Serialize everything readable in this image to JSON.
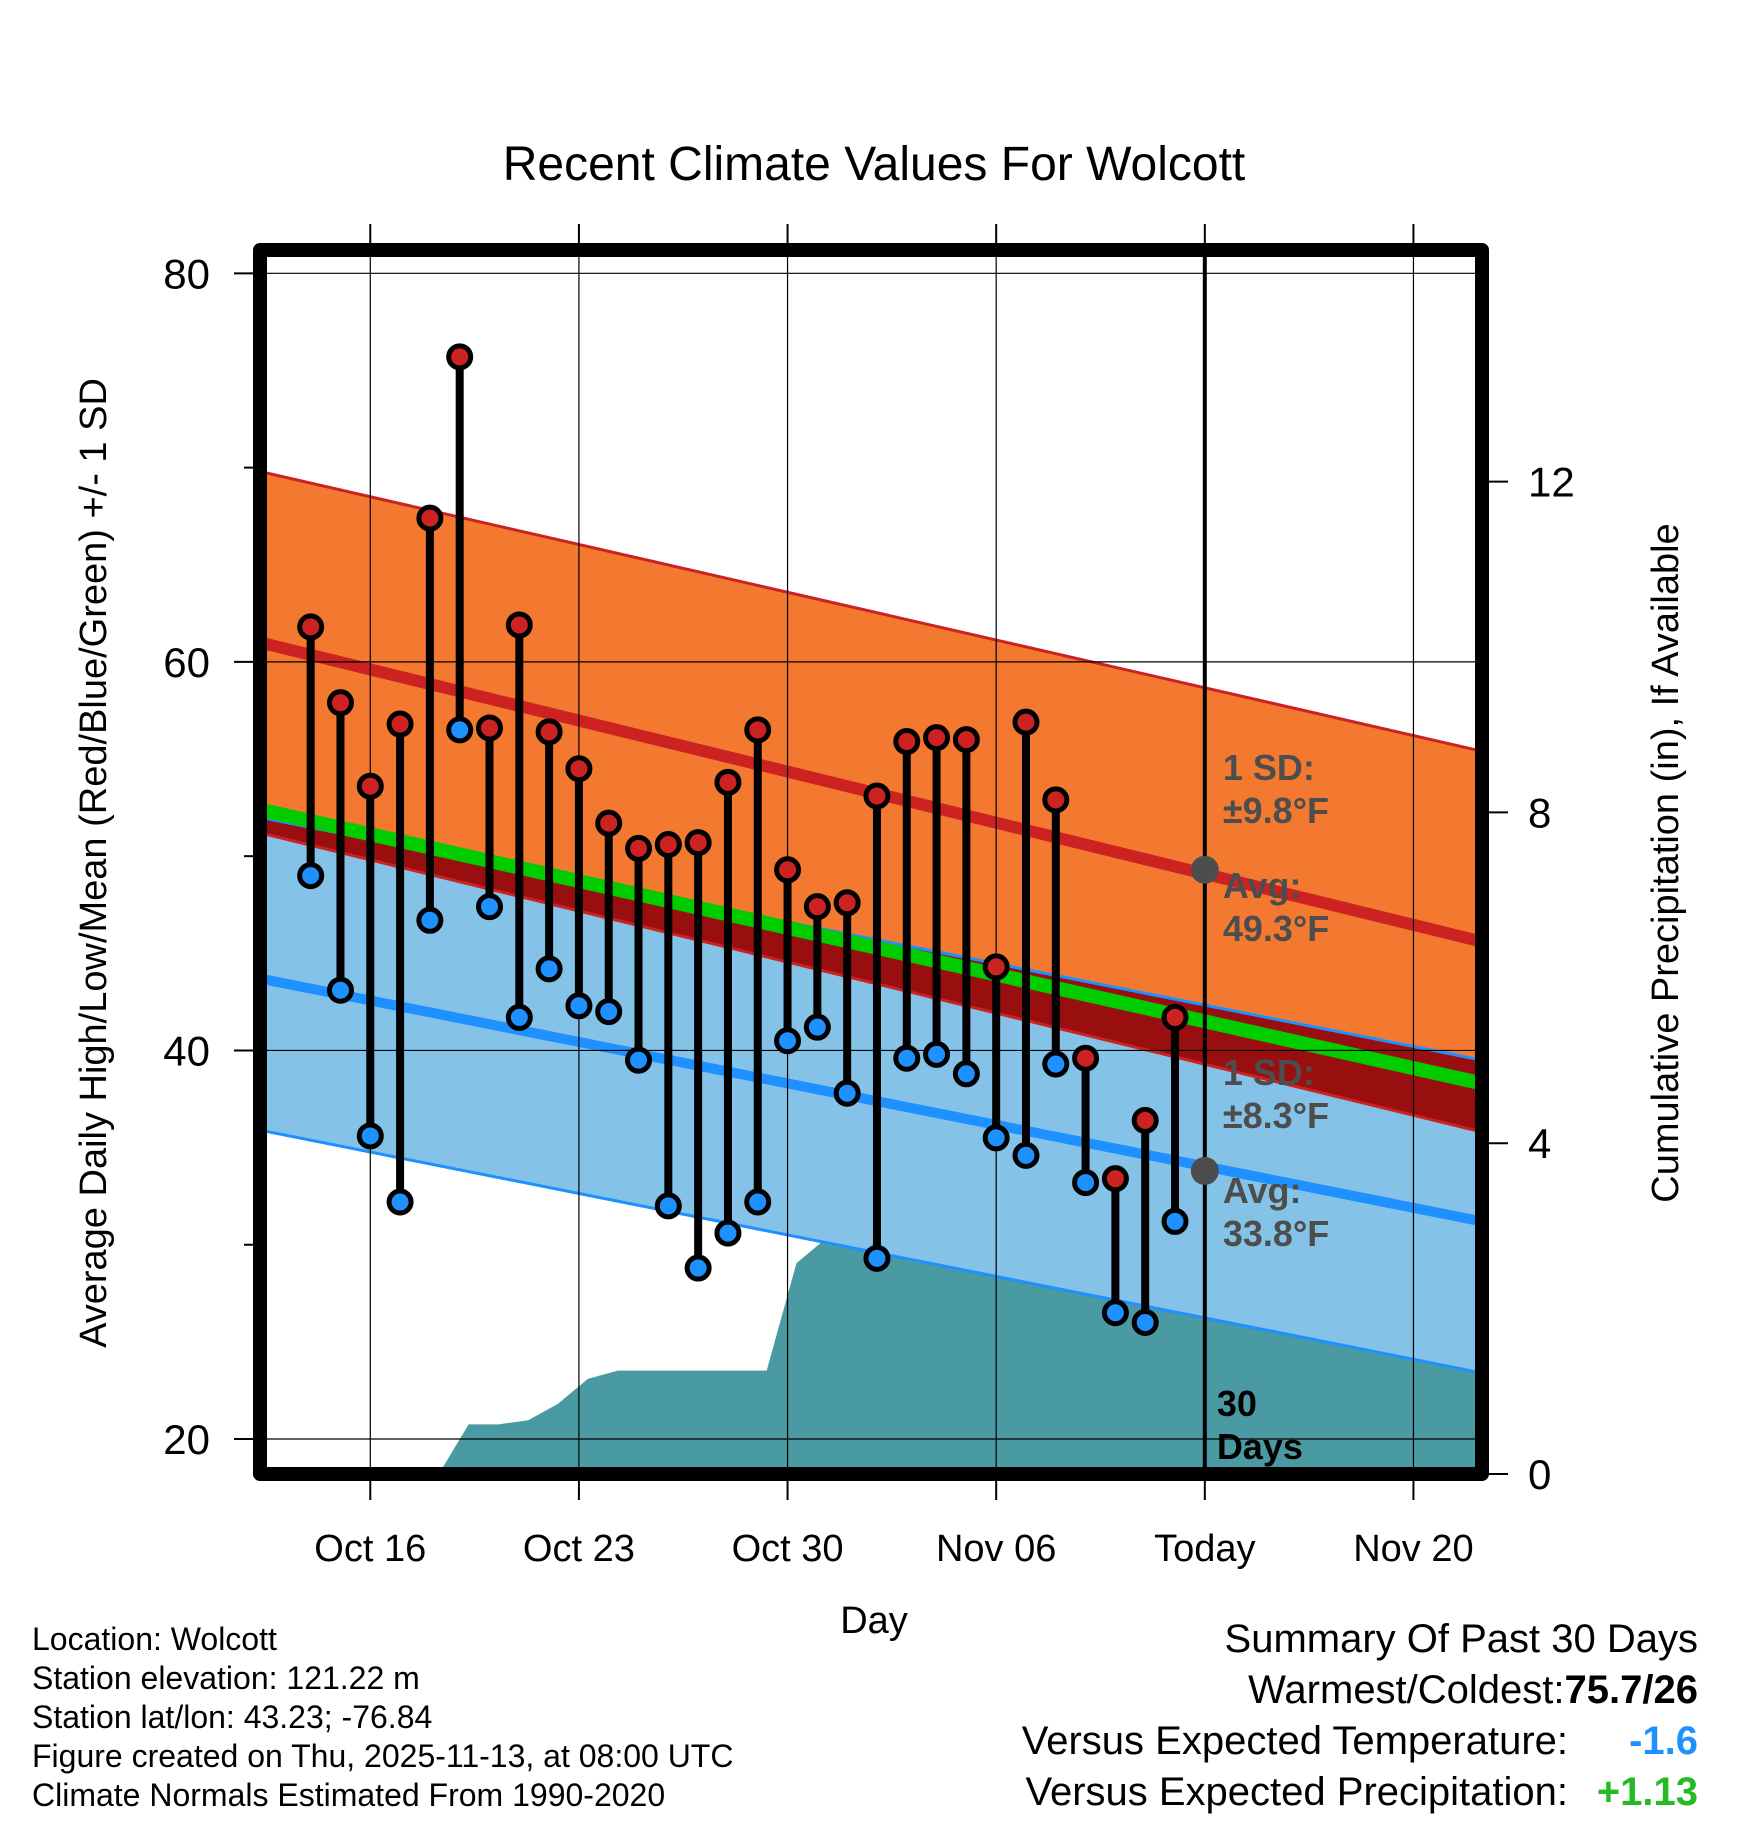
{
  "chart_data": {
    "type": "line",
    "title": "Recent Climate Values For Wolcott",
    "xlabel": "Day",
    "ylabel": "Average Daily High/Low/Mean (Red/Blue/Green) +/- 1 SD",
    "y2label": "Cumulative Precipitation (in), If Available",
    "ylim": [
      18.2,
      81.2
    ],
    "y2lim": [
      0,
      14.8
    ],
    "xlim": [
      -0.7,
      40.3
    ],
    "yticks": [
      "20",
      "40",
      "60",
      "80"
    ],
    "y2ticks": [
      "0",
      "4",
      "8",
      "12"
    ],
    "xticks": [
      {
        "day": 3,
        "label": "Oct 16"
      },
      {
        "day": 10,
        "label": "Oct 23"
      },
      {
        "day": 17,
        "label": "Oct 30"
      },
      {
        "day": 24,
        "label": "Nov 06"
      },
      {
        "day": 31,
        "label": "Today"
      },
      {
        "day": 38,
        "label": "Nov 20"
      }
    ],
    "today_day": 31,
    "window_label": "30\nDays",
    "normals": {
      "day_start": -0.7,
      "day_end": 40.3,
      "high_mean": [
        61.0,
        45.6
      ],
      "high_upper": [
        69.8,
        55.4
      ],
      "high_lower": [
        51.2,
        35.8
      ],
      "low_mean": [
        43.7,
        31.2
      ],
      "low_upper": [
        52.0,
        39.5
      ],
      "low_lower": [
        35.9,
        23.4
      ],
      "avg_mean": [
        52.4,
        38.3
      ]
    },
    "series": [
      {
        "name": "High",
        "days": [
          1,
          2,
          3,
          4,
          5,
          6,
          7,
          8,
          9,
          10,
          11,
          12,
          13,
          14,
          15,
          16,
          17,
          18,
          19,
          20,
          21,
          22,
          23,
          24,
          25,
          26,
          27,
          28,
          29,
          30
        ],
        "values": [
          61.8,
          57.9,
          53.6,
          56.8,
          67.4,
          75.7,
          56.6,
          61.9,
          56.4,
          54.5,
          51.7,
          50.4,
          50.6,
          50.7,
          53.8,
          56.5,
          49.3,
          47.4,
          47.6,
          53.1,
          55.9,
          56.1,
          56.0,
          44.3,
          56.9,
          52.9,
          39.6,
          33.4,
          36.4,
          41.7
        ]
      },
      {
        "name": "Low",
        "days": [
          1,
          2,
          3,
          4,
          5,
          6,
          7,
          8,
          9,
          10,
          11,
          12,
          13,
          14,
          15,
          16,
          17,
          18,
          19,
          20,
          21,
          22,
          23,
          24,
          25,
          26,
          27,
          28,
          29,
          30
        ],
        "values": [
          49.0,
          43.1,
          35.6,
          32.2,
          46.7,
          56.5,
          47.4,
          41.7,
          44.2,
          42.3,
          42.0,
          39.5,
          32.0,
          28.8,
          30.6,
          32.2,
          40.5,
          41.2,
          37.8,
          29.3,
          39.6,
          39.8,
          38.8,
          35.5,
          34.6,
          39.3,
          33.2,
          26.5,
          26.0,
          31.2
        ]
      }
    ],
    "precip": {
      "name": "Cumulative Precipitation",
      "days": [
        5.3,
        6.3,
        7.3,
        8.3,
        9.3,
        10.3,
        11.3,
        12.3,
        13.3,
        14.3,
        15.3,
        16.3,
        17.3,
        18.3,
        19.3,
        20.3,
        21.3,
        22.3,
        23.3,
        24.3,
        25.3,
        26.3,
        27.3,
        28.3,
        29.3,
        30.3,
        31.0,
        40.3
      ],
      "values": [
        0.0,
        0.6,
        0.6,
        0.65,
        0.85,
        1.15,
        1.25,
        1.25,
        1.25,
        1.25,
        1.25,
        1.25,
        2.55,
        2.85,
        3.1,
        3.1,
        3.12,
        3.15,
        3.45,
        3.48,
        3.55,
        3.58,
        3.85,
        4.25,
        4.85,
        5.15,
        5.15,
        5.15
      ]
    },
    "annotations": {
      "high_sd_label": "1 SD:",
      "high_sd_value": "±9.8°F",
      "high_avg_label": "Avg:",
      "high_avg_value": "49.3°F",
      "high_avg_dot": 49.3,
      "low_sd_label": "1 SD:",
      "low_sd_value": "±8.3°F",
      "low_avg_label": "Avg:",
      "low_avg_value": "33.8°F",
      "low_avg_dot": 33.8
    },
    "colors": {
      "high_band": "#f47930",
      "high_line": "#cc2222",
      "low_band": "#85c2e8",
      "low_line": "#1e90ff",
      "mean_line": "#00cc00",
      "overlap": "#990f10",
      "precip": "#4a9aa3",
      "high_dot": "#cc2222",
      "low_dot": "#1e90ff",
      "avg_dot": "#4d4d4d",
      "annot_text": "#4d4d4d"
    }
  },
  "info": {
    "location": "Location: Wolcott",
    "elevation": "Station elevation: 121.22 m",
    "latlon": "Station lat/lon: 43.23; -76.84",
    "created": "Figure created on Thu, 2025-11-13, at 08:00 UTC",
    "normals": "Climate Normals Estimated From 1990-2020"
  },
  "summary": {
    "title": "Summary Of Past 30 Days",
    "warmest_label": "Warmest/Coldest:",
    "warmest_value": "75.7/26",
    "temp_label": "Versus Expected Temperature:",
    "temp_value": "-1.6",
    "temp_color": "#1e90ff",
    "precip_label": "Versus Expected Precipitation:",
    "precip_value": "+1.13",
    "precip_color": "#22bb22"
  }
}
